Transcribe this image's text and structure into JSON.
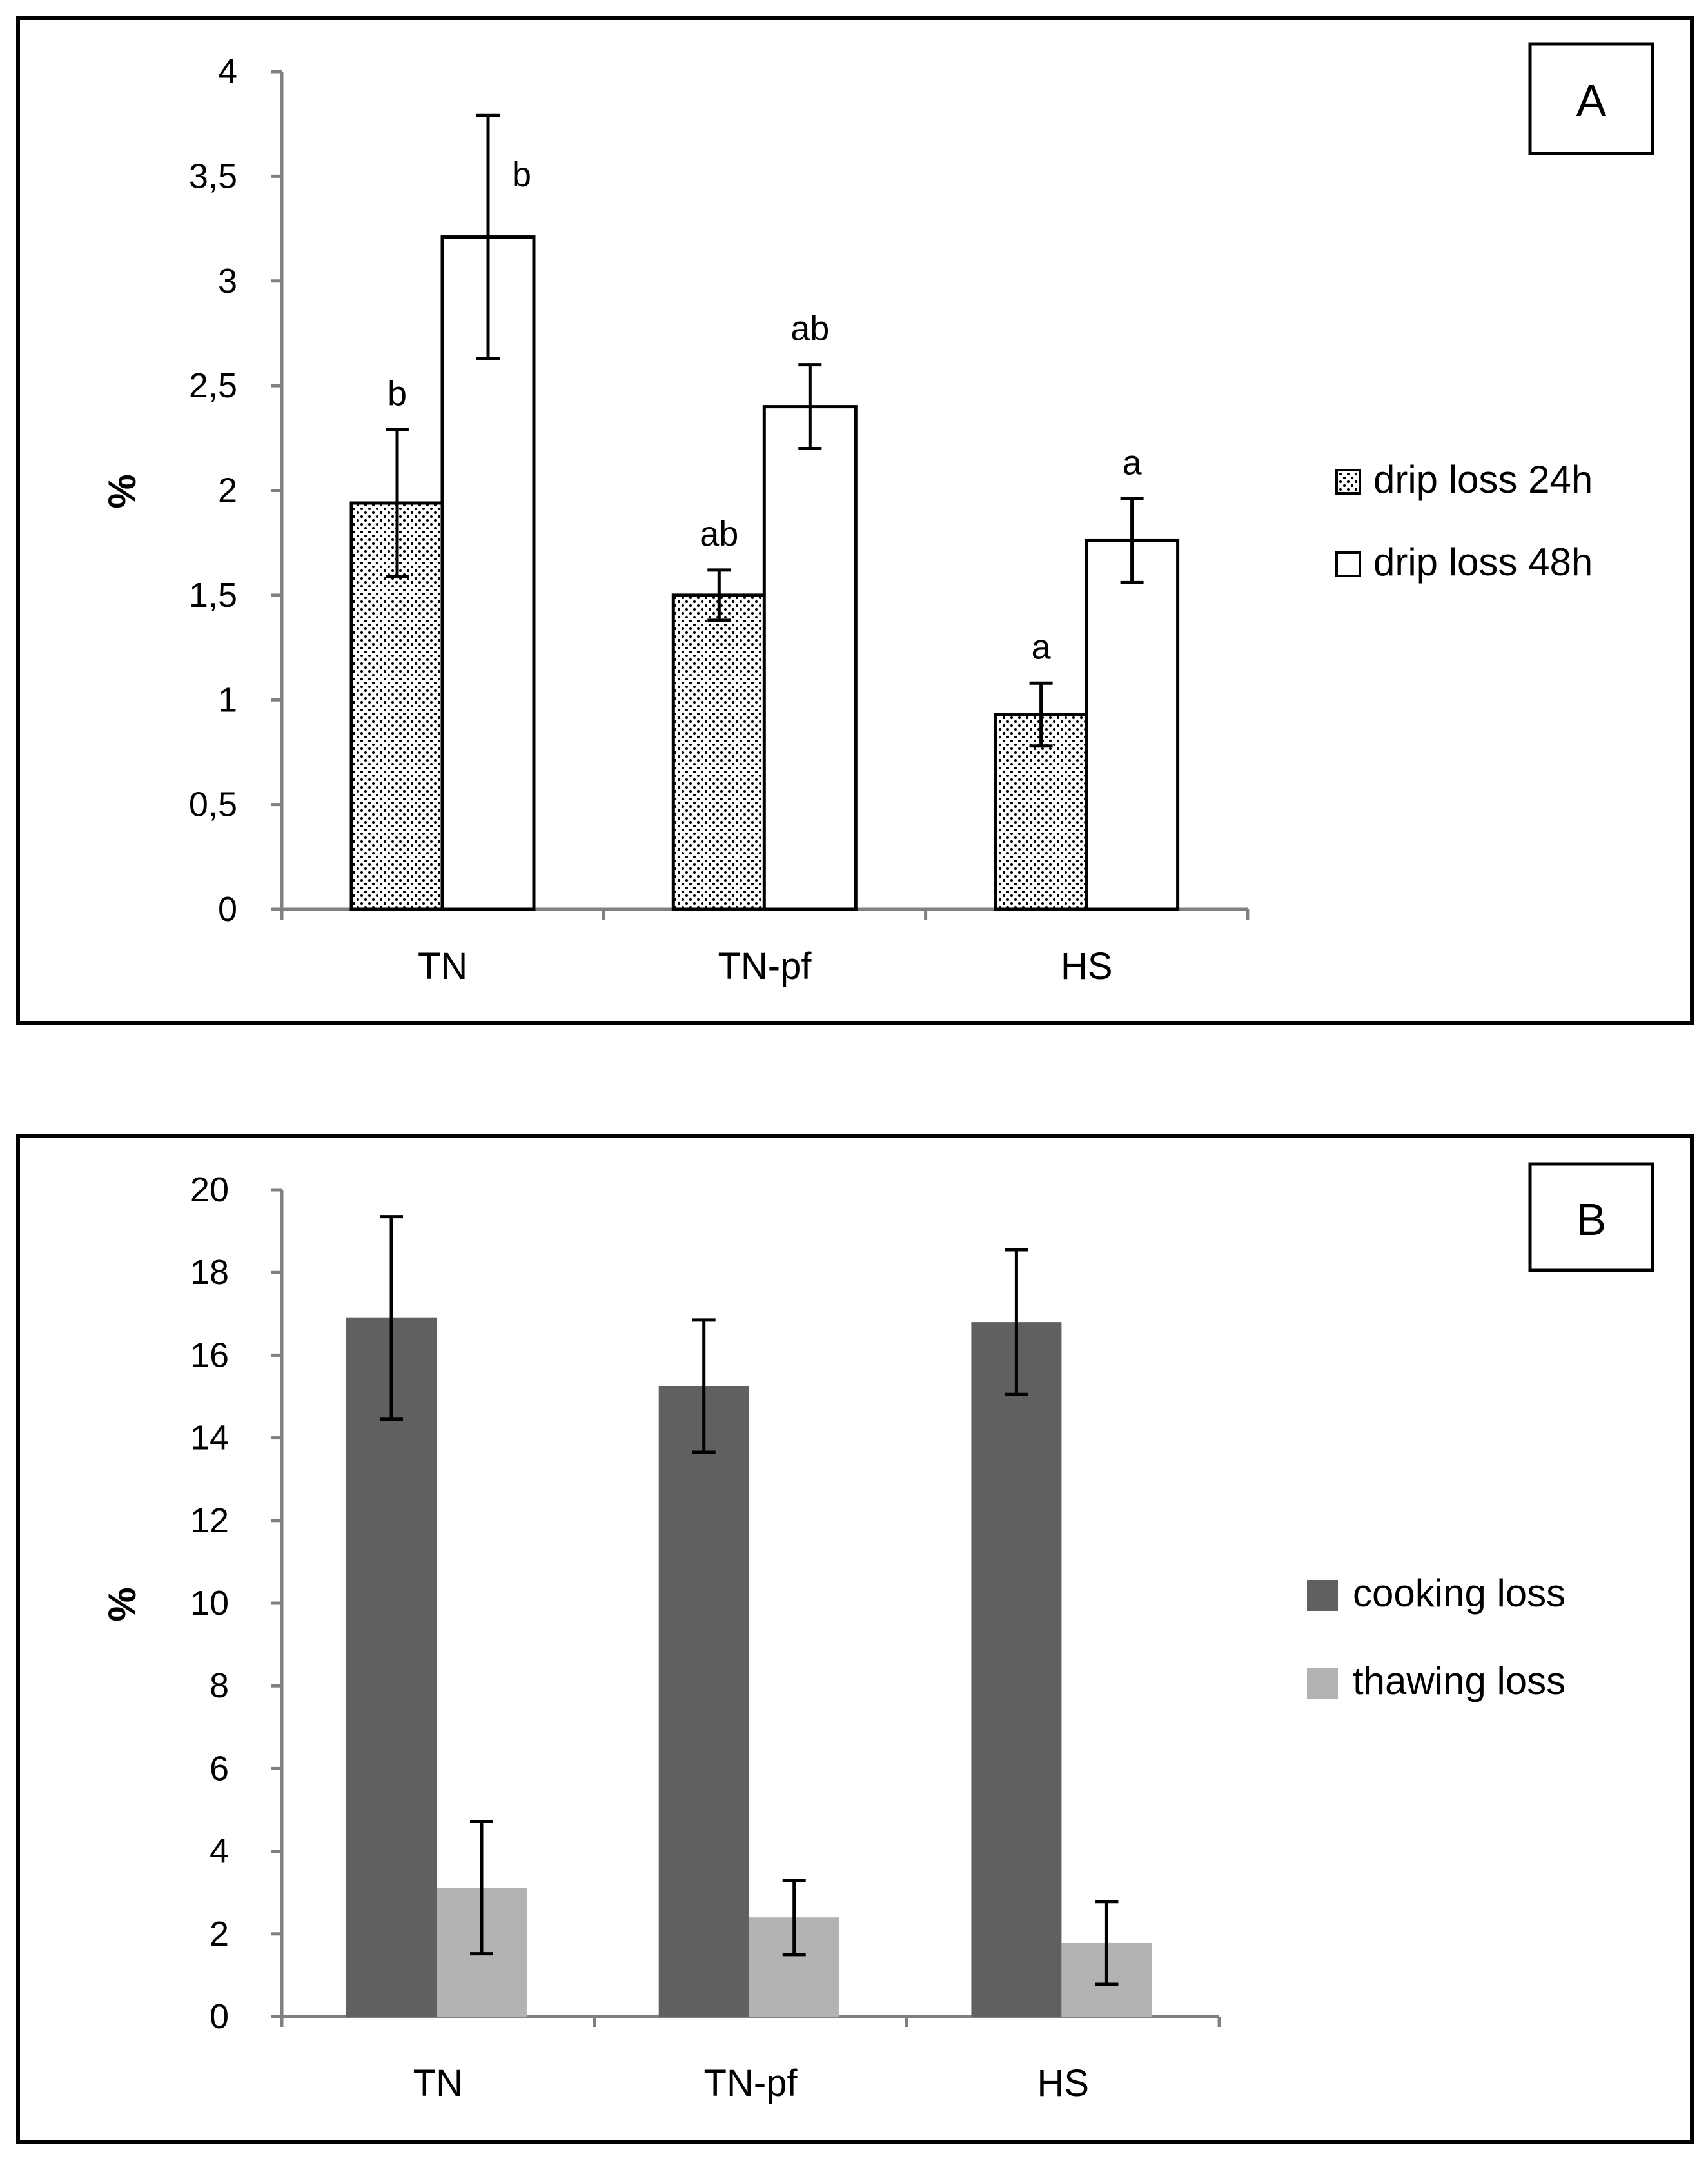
{
  "colors": {
    "frame": "#000000",
    "cooking_loss": "#606060",
    "thawing_loss": "#b3b3b3",
    "white": "#ffffff"
  },
  "chart_data": [
    {
      "panel": "A",
      "type": "bar",
      "ylabel": "%",
      "xlabel": "",
      "ylim": [
        0,
        4
      ],
      "yticks": [
        "0",
        "0,5",
        "1",
        "1,5",
        "2",
        "2,5",
        "3",
        "3,5",
        "4"
      ],
      "ytick_values": [
        0,
        0.5,
        1,
        1.5,
        2,
        2.5,
        3,
        3.5,
        4
      ],
      "categories": [
        "TN",
        "TN-pf",
        "HS"
      ],
      "legend_position": "right",
      "series": [
        {
          "name": "drip loss 24h",
          "fill": "dotted",
          "values": [
            1.94,
            1.5,
            0.93
          ],
          "errors": [
            0.35,
            0.12,
            0.15
          ],
          "labels": [
            "b",
            "ab",
            "a"
          ]
        },
        {
          "name": "drip loss 48h",
          "fill": "white",
          "values": [
            3.21,
            2.4,
            1.76
          ],
          "errors": [
            0.58,
            0.2,
            0.2
          ],
          "labels": [
            "b",
            "ab",
            "a"
          ]
        }
      ]
    },
    {
      "panel": "B",
      "type": "bar",
      "ylabel": "%",
      "xlabel": "",
      "ylim": [
        0,
        20
      ],
      "yticks": [
        "0",
        "2",
        "4",
        "6",
        "8",
        "10",
        "12",
        "14",
        "16",
        "18",
        "20"
      ],
      "ytick_values": [
        0,
        2,
        4,
        6,
        8,
        10,
        12,
        14,
        16,
        18,
        20
      ],
      "categories": [
        "TN",
        "TN-pf",
        "HS"
      ],
      "legend_position": "right",
      "series": [
        {
          "name": "cooking loss",
          "fill": "dark-gray",
          "values": [
            16.9,
            15.25,
            16.8
          ],
          "errors": [
            2.45,
            1.6,
            1.75
          ]
        },
        {
          "name": "thawing loss",
          "fill": "light-gray",
          "values": [
            3.12,
            2.4,
            1.78
          ],
          "errors": [
            1.6,
            0.9,
            1.0
          ]
        }
      ]
    }
  ]
}
